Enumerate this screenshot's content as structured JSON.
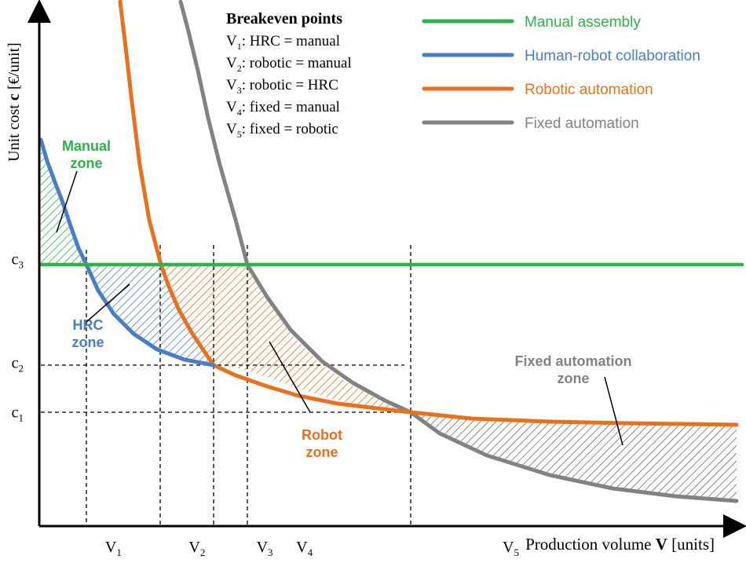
{
  "chart_data": {
    "type": "line",
    "ylabel_pre": "Unit cost ",
    "ylabel_bold": "c",
    "ylabel_post": " [€/unit]",
    "xlabel_pre": "Production volume ",
    "xlabel_bold": "V",
    "xlabel_post": " [units]",
    "grid": false,
    "legend_position": "top-right",
    "x_ticks": [
      {
        "base": "V",
        "sub": "1",
        "x": 0.104
      },
      {
        "base": "V",
        "sub": "2",
        "x": 0.224
      },
      {
        "base": "V",
        "sub": "3",
        "x": 0.321
      },
      {
        "base": "V",
        "sub": "4",
        "x": 0.378
      },
      {
        "base": "V",
        "sub": "5",
        "x": 0.674
      }
    ],
    "y_ticks": [
      {
        "base": "c",
        "sub": "3",
        "y": 0.521
      },
      {
        "base": "c",
        "sub": "2",
        "y": 0.32
      },
      {
        "base": "c",
        "sub": "1",
        "y": 0.224
      }
    ],
    "series": [
      {
        "name": "Manual assembly",
        "color": "#2fb14a"
      },
      {
        "name": "Human-robot collaboration",
        "color": "#4a7dc6"
      },
      {
        "name": "Robotic automation",
        "color": "#e8701e"
      },
      {
        "name": "Fixed automation",
        "color": "#828282"
      }
    ],
    "breakeven": {
      "title": "Breakeven points",
      "items": [
        {
          "base": "V",
          "sub": "1",
          "text": ":  HRC = manual"
        },
        {
          "base": "V",
          "sub": "2",
          "text": ":  robotic = manual"
        },
        {
          "base": "V",
          "sub": "3",
          "text": ":  robotic = HRC"
        },
        {
          "base": "V",
          "sub": "4",
          "text": ":  fixed = manual"
        },
        {
          "base": "V",
          "sub": "5",
          "text": ":  fixed = robotic"
        }
      ]
    },
    "zones": [
      {
        "lines": [
          "Manual",
          "zone"
        ],
        "color": "#2fb14a"
      },
      {
        "lines": [
          "HRC",
          "zone"
        ],
        "color": "#4a7dc6"
      },
      {
        "lines": [
          "Robot",
          "zone"
        ],
        "color": "#e8701e"
      },
      {
        "lines": [
          "Fixed automation",
          "zone"
        ],
        "color": "#828282"
      }
    ],
    "ylim": [
      0,
      1
    ],
    "xlim": [
      0,
      1
    ]
  }
}
